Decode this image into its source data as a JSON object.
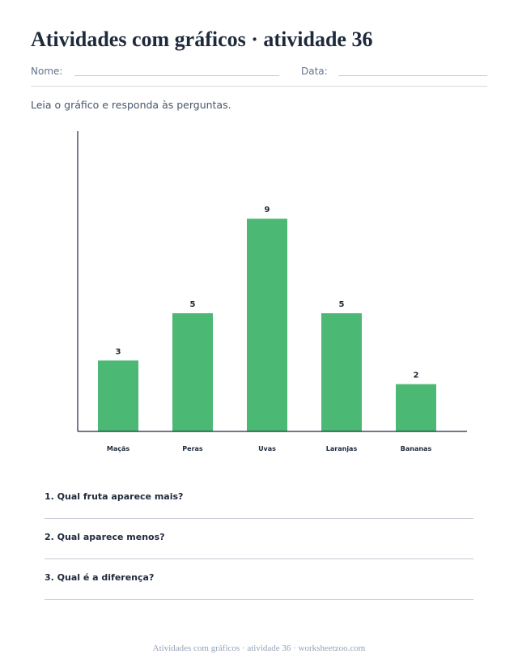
{
  "header": {
    "title": "Atividades com gráficos · atividade 36",
    "name_label": "Nome:",
    "date_label": "Data:"
  },
  "instruction": "Leia o gráfico e responda às perguntas.",
  "chart_data": {
    "type": "bar",
    "categories": [
      "Maçãs",
      "Peras",
      "Uvas",
      "Laranjas",
      "Bananas"
    ],
    "values": [
      3,
      5,
      9,
      5,
      2
    ],
    "title": "",
    "xlabel": "",
    "ylabel": "",
    "ylim": [
      0,
      12
    ],
    "grid": false,
    "data_labels": true,
    "bar_color": "#4bb874"
  },
  "questions": [
    "1. Qual fruta aparece mais?",
    "2. Qual aparece menos?",
    "3. Qual é a diferença?"
  ],
  "footer": "Atividades com gráficos · atividade 36 · worksheetzoo.com"
}
